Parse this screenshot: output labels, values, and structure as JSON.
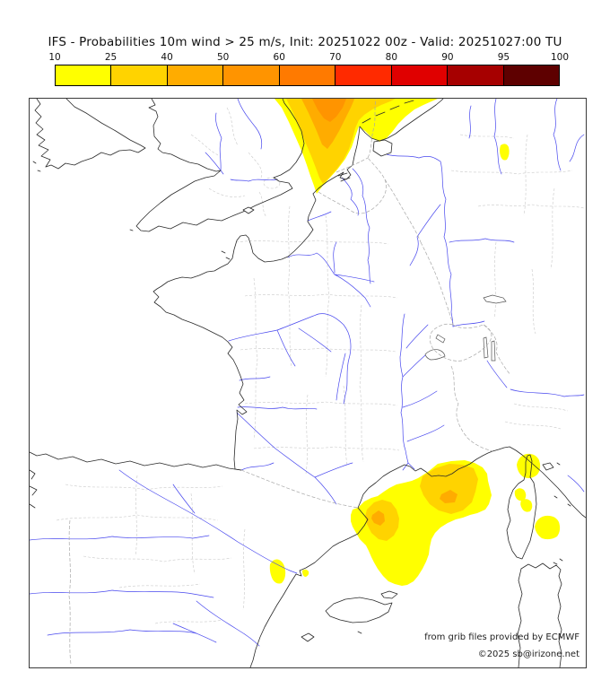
{
  "title": "IFS - Probabilities 10m wind > 25 m/s, Init: 20251022 00z - Valid: 20251027:00 TU",
  "legend": {
    "ticks": [
      "10",
      "25",
      "40",
      "50",
      "60",
      "70",
      "80",
      "90",
      "95",
      "100"
    ],
    "colors": [
      "#FFFF00",
      "#FFD300",
      "#FFAC00",
      "#FF9400",
      "#FF7A00",
      "#FF2A00",
      "#E00000",
      "#A60000",
      "#5E0000"
    ],
    "unit": "%"
  },
  "attribution": {
    "line1": "from grib files provided by ECMWF",
    "line2": "©2025 sb@irizone.net"
  },
  "map_colors": {
    "coast": "#2a2a2a",
    "river": "#4747ee",
    "admin": "#c9c9c9",
    "border": "#a8a8a8",
    "p10": "#FFFF00",
    "p25": "#FFD300",
    "p40": "#FFAC00",
    "p50": "#FF9400"
  },
  "probability_regions": [
    {
      "area": "North Sea off Dutch coast",
      "max_probability": "50-60"
    },
    {
      "area": "Gulf of Lion / NW Mediterranean",
      "max_probability": "40-50"
    },
    {
      "area": "Roussillon coast (Cap Bear)",
      "max_probability": "40-50"
    },
    {
      "area": "Cap Corse",
      "max_probability": "10-25"
    },
    {
      "area": "East Corsica coast",
      "max_probability": "10-25"
    },
    {
      "area": "Strait of Bonifacio",
      "max_probability": "10-25"
    },
    {
      "area": "Ebro delta, Spain",
      "max_probability": "10-25"
    },
    {
      "area": "NW Germany",
      "max_probability": "10-25"
    }
  ]
}
